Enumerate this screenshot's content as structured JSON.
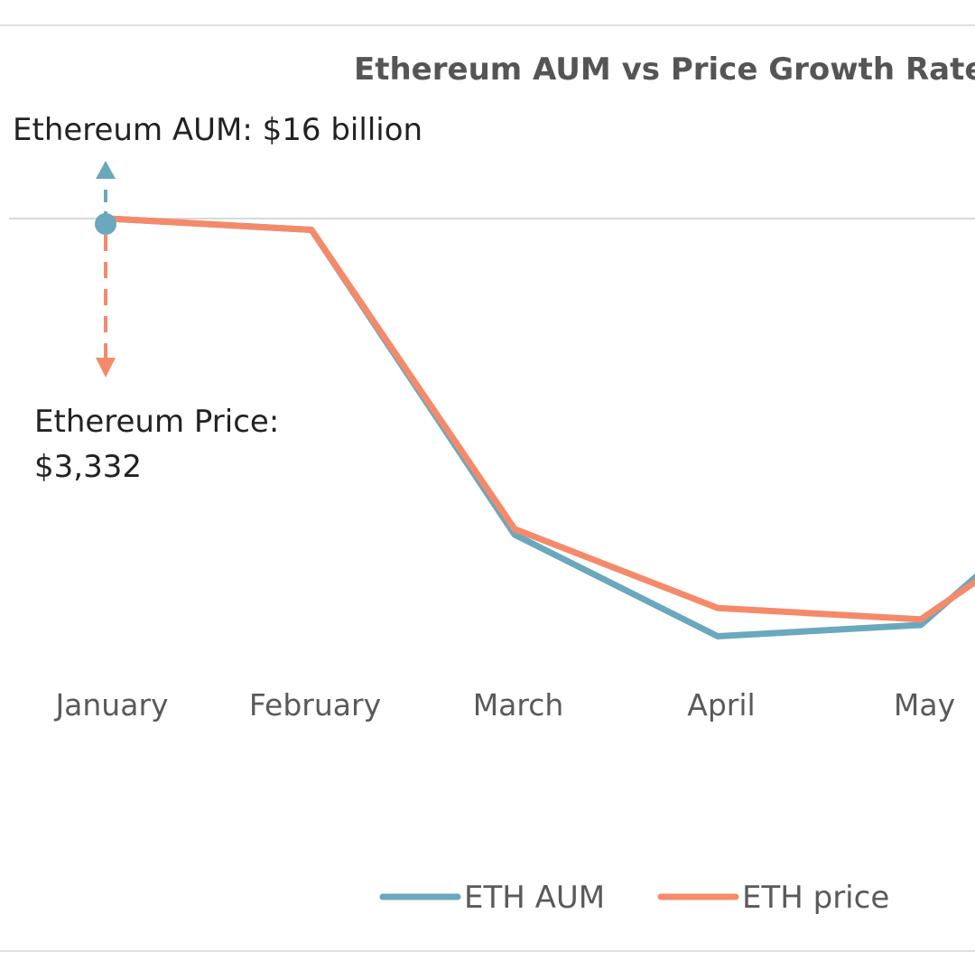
{
  "chart_data": {
    "type": "line",
    "title": "Ethereum AUM vs Price Growth Rate (Y",
    "categories": [
      "January",
      "February",
      "March",
      "April",
      "May"
    ],
    "series": [
      {
        "name": "ETH AUM",
        "color": "#6aa8bd",
        "values": [
          100,
          98,
          44,
          26,
          28
        ]
      },
      {
        "name": "ETH price",
        "color": "#f58a6a",
        "values": [
          100,
          98,
          45,
          31,
          29
        ]
      }
    ],
    "trend_after_last": {
      "AUM": 42,
      "price": 40
    },
    "ylim": [
      20,
      100
    ],
    "grid": "top-line-only",
    "legend": "bottom",
    "annotations": {
      "aum": {
        "text": "Ethereum AUM: $16 billion",
        "color": "#6aa8bd"
      },
      "price": {
        "line1": "Ethereum Price:",
        "line2": "$3,332",
        "color": "#f58a6a"
      }
    },
    "colors": {
      "frame": "#e0e0e0",
      "grid": "#d9d9d9",
      "title": "#555555",
      "label": "#5a5a5a",
      "annotation_text": "#222222"
    }
  }
}
